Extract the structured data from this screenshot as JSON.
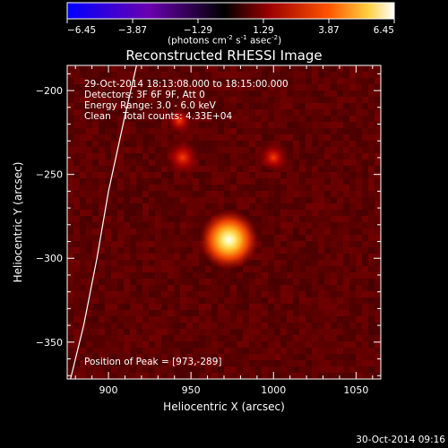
{
  "colorbar": {
    "ticks": [
      "-6.45",
      "-3.87",
      "-1.29",
      "1.29",
      "3.87",
      "6.45"
    ],
    "unit_main": "(photons cm",
    "unit_sup1": "-2",
    "unit_mid": " s",
    "unit_sup2": "-1",
    "unit_end": " asec",
    "unit_sup3": "-2",
    "unit_close": ")"
  },
  "chart_data": {
    "type": "heatmap",
    "title": "Reconstructed RHESSI Image",
    "xlabel": "Heliocentric X (arcsec)",
    "ylabel": "Heliocentric Y (arcsec)",
    "xlim": [
      875,
      1065
    ],
    "ylim": [
      -372,
      -185
    ],
    "x_ticks": [
      900,
      950,
      1000,
      1050
    ],
    "y_ticks": [
      -200,
      -250,
      -300,
      -350
    ],
    "x_tick_labels": [
      "900",
      "950",
      "1000",
      "1050"
    ],
    "y_tick_labels": [
      "−200",
      "−250",
      "−300",
      "−350"
    ],
    "colorscale_range": [
      -6.45,
      6.45
    ],
    "colormap": [
      "#0000ff",
      "#7a00a0",
      "#000000",
      "#9e0000",
      "#ff5500",
      "#ffd040",
      "#ffffff"
    ],
    "peak": {
      "x": 973,
      "y": -289,
      "value": 6.45
    },
    "secondary_sources": [
      {
        "x": 945,
        "y": -240,
        "value": 2.2
      },
      {
        "x": 1000,
        "y": -240,
        "value": 1.6
      },
      {
        "x": 943,
        "y": -218,
        "value": 1.2
      }
    ],
    "limb_curve": [
      [
        917,
        -185
      ],
      [
        910,
        -215
      ],
      [
        900,
        -260
      ],
      [
        893,
        -300
      ],
      [
        885,
        -340
      ],
      [
        877,
        -372
      ]
    ],
    "annotations": [
      "29-Oct-2014 18:13:08.000 to 18:15:00.000",
      "Detectors: 3F 6F 9F, Att 0",
      "Energy Range: 3.0 - 6.0 keV",
      "Clean    Total counts: 4.33E+04",
      "Position of Peak = [973,-289]"
    ],
    "timestamp": "30-Oct-2014 09:16"
  }
}
